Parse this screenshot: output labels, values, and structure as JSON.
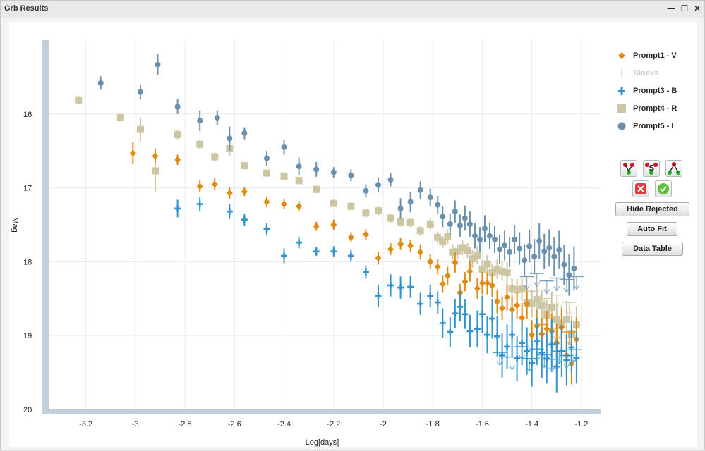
{
  "window": {
    "title": "Grb Results"
  },
  "buttons": {
    "hide_rejected": "Hide Rejected",
    "auto_fit": "Auto Fit",
    "data_table": "Data Table"
  },
  "tool_icons": [
    "fit-v-icon",
    "fit-s-icon",
    "fit-a-icon",
    "reject-x-icon",
    "accept-check-icon"
  ],
  "colors": {
    "V": "#e08a12",
    "Blocks": "#d8d3b5",
    "B": "#2f93cf",
    "R": "#cdc6a2",
    "I": "#6a90ad",
    "axis": "#c0cfdc"
  },
  "chart_data": {
    "type": "scatter",
    "xlabel": "Log[days]",
    "ylabel": "Mag",
    "xlim": [
      -3.35,
      -1.12
    ],
    "ylim": [
      20,
      15.0
    ],
    "y_inverted": true,
    "grid": true,
    "legend_position": "right",
    "xticks": [
      -3.2,
      -3,
      -2.8,
      -2.6,
      -2.4,
      -2.2,
      -2,
      -1.8,
      -1.6,
      -1.4,
      -1.2
    ],
    "xtick_labels": [
      "-3.2",
      "-3",
      "-2.8",
      "-2.6",
      "-2.4",
      "-2.2",
      "-2",
      "-1.8",
      "-1.6",
      "-1.4",
      "-1.2"
    ],
    "yticks": [
      16,
      17,
      18,
      19,
      20
    ],
    "ytick_labels": [
      "16",
      "17",
      "18",
      "19",
      "20"
    ],
    "series": [
      {
        "name": "Prompt1 - V",
        "marker": "diamond",
        "color": "#e08a12",
        "visible": true,
        "points": [
          [
            -3.01,
            16.53,
            0.15
          ],
          [
            -2.92,
            16.57,
            0.1
          ],
          [
            -2.83,
            16.62,
            0.07
          ],
          [
            -2.74,
            16.98,
            0.08
          ],
          [
            -2.68,
            16.95,
            0.08
          ],
          [
            -2.62,
            17.07,
            0.08
          ],
          [
            -2.56,
            17.05,
            0.06
          ],
          [
            -2.47,
            17.19,
            0.07
          ],
          [
            -2.4,
            17.22,
            0.07
          ],
          [
            -2.34,
            17.25,
            0.07
          ],
          [
            -2.27,
            17.52,
            0.06
          ],
          [
            -2.2,
            17.5,
            0.07
          ],
          [
            -2.13,
            17.67,
            0.07
          ],
          [
            -2.07,
            17.63,
            0.07
          ],
          [
            -2.02,
            17.95,
            0.09
          ],
          [
            -1.97,
            17.83,
            0.08
          ],
          [
            -1.93,
            17.76,
            0.08
          ],
          [
            -1.89,
            17.78,
            0.08
          ],
          [
            -1.85,
            17.87,
            0.1
          ],
          [
            -1.81,
            18.0,
            0.1
          ],
          [
            -1.78,
            18.07,
            0.1
          ],
          [
            -1.76,
            18.3,
            0.12
          ],
          [
            -1.74,
            18.19,
            0.12
          ],
          [
            -1.71,
            18.01,
            0.14
          ],
          [
            -1.69,
            18.42,
            0.12
          ],
          [
            -1.67,
            18.27,
            0.13
          ],
          [
            -1.65,
            18.13,
            0.14
          ],
          [
            -1.62,
            18.36,
            0.14
          ],
          [
            -1.6,
            18.29,
            0.15
          ],
          [
            -1.58,
            18.29,
            0.15
          ],
          [
            -1.56,
            18.32,
            0.16
          ],
          [
            -1.54,
            18.54,
            0.16
          ],
          [
            -1.52,
            18.63,
            0.16
          ],
          [
            -1.5,
            18.48,
            0.18
          ],
          [
            -1.48,
            18.65,
            0.18
          ],
          [
            -1.46,
            18.59,
            0.18
          ],
          [
            -1.44,
            18.76,
            0.2
          ],
          [
            -1.42,
            18.57,
            0.2
          ],
          [
            -1.4,
            18.99,
            0.2
          ],
          [
            -1.38,
            18.87,
            0.22
          ],
          [
            -1.36,
            18.98,
            0.22
          ],
          [
            -1.34,
            18.91,
            0.24
          ],
          [
            -1.32,
            18.94,
            0.24
          ],
          [
            -1.3,
            19.1,
            0.26
          ],
          [
            -1.28,
            18.89,
            0.26
          ],
          [
            -1.26,
            19.27,
            0.28
          ],
          [
            -1.24,
            19.38,
            0.28
          ],
          [
            -1.22,
            19.05,
            0.3
          ]
        ]
      },
      {
        "name": "Blocks",
        "marker": "bar",
        "color": "#d8d3b5",
        "visible": false,
        "points": []
      },
      {
        "name": "Prompt3 - B",
        "marker": "plus",
        "color": "#2f93cf",
        "visible": true,
        "points": [
          [
            -2.83,
            17.28,
            0.12
          ],
          [
            -2.74,
            17.22,
            0.1
          ],
          [
            -2.62,
            17.32,
            0.1
          ],
          [
            -2.56,
            17.43,
            0.08
          ],
          [
            -2.47,
            17.56,
            0.08
          ],
          [
            -2.4,
            17.92,
            0.1
          ],
          [
            -2.34,
            17.74,
            0.08
          ],
          [
            -2.27,
            17.86,
            0.06
          ],
          [
            -2.2,
            17.86,
            0.07
          ],
          [
            -2.13,
            17.92,
            0.08
          ],
          [
            -2.07,
            18.14,
            0.09
          ],
          [
            -2.02,
            18.46,
            0.15
          ],
          [
            -1.97,
            18.32,
            0.15
          ],
          [
            -1.93,
            18.35,
            0.15
          ],
          [
            -1.89,
            18.34,
            0.15
          ],
          [
            -1.85,
            18.57,
            0.15
          ],
          [
            -1.81,
            18.46,
            0.15
          ],
          [
            -1.78,
            18.55,
            0.15
          ],
          [
            -1.76,
            18.83,
            0.2
          ],
          [
            -1.73,
            18.95,
            0.2
          ],
          [
            -1.71,
            18.7,
            0.2
          ],
          [
            -1.69,
            18.61,
            0.2
          ],
          [
            -1.67,
            18.71,
            0.2
          ],
          [
            -1.65,
            18.94,
            0.22
          ],
          [
            -1.62,
            18.91,
            0.25
          ],
          [
            -1.6,
            18.71,
            0.25
          ],
          [
            -1.58,
            18.99,
            0.25
          ],
          [
            -1.56,
            18.77,
            0.27
          ],
          [
            -1.54,
            19.01,
            0.27
          ],
          [
            -1.52,
            19.27,
            0.3
          ],
          [
            -1.5,
            19.15,
            0.3
          ],
          [
            -1.48,
            18.99,
            0.3
          ],
          [
            -1.46,
            19.31,
            0.3
          ],
          [
            -1.44,
            19.1,
            0.3
          ],
          [
            -1.42,
            19.21,
            0.32
          ],
          [
            -1.4,
            19.37,
            0.32
          ],
          [
            -1.38,
            19.08,
            0.32
          ],
          [
            -1.36,
            19.23,
            0.34
          ],
          [
            -1.34,
            19.31,
            0.34
          ],
          [
            -1.32,
            19.12,
            0.34
          ],
          [
            -1.3,
            19.42,
            0.35
          ],
          [
            -1.28,
            19.21,
            0.35
          ],
          [
            -1.26,
            19.33,
            0.35
          ],
          [
            -1.24,
            19.16,
            0.35
          ],
          [
            -1.22,
            19.3,
            0.35
          ]
        ]
      },
      {
        "name": "Prompt4 - R",
        "marker": "square",
        "color": "#cdc6a2",
        "visible": true,
        "points": [
          [
            -3.23,
            15.81,
            0.06
          ],
          [
            -3.06,
            16.05,
            0.05
          ],
          [
            -2.98,
            16.21,
            0.16
          ],
          [
            -2.92,
            16.77,
            0.28
          ],
          [
            -2.83,
            16.28,
            0.06
          ],
          [
            -2.74,
            16.41,
            0.06
          ],
          [
            -2.68,
            16.58,
            0.06
          ],
          [
            -2.62,
            16.47,
            0.1
          ],
          [
            -2.56,
            16.7,
            0.05
          ],
          [
            -2.47,
            16.8,
            0.05
          ],
          [
            -2.4,
            16.84,
            0.05
          ],
          [
            -2.34,
            16.9,
            0.05
          ],
          [
            -2.27,
            17.02,
            0.05
          ],
          [
            -2.2,
            17.21,
            0.05
          ],
          [
            -2.13,
            17.25,
            0.05
          ],
          [
            -2.07,
            17.34,
            0.06
          ],
          [
            -2.02,
            17.31,
            0.06
          ],
          [
            -1.97,
            17.41,
            0.06
          ],
          [
            -1.93,
            17.46,
            0.06
          ],
          [
            -1.89,
            17.47,
            0.06
          ],
          [
            -1.85,
            17.58,
            0.07
          ],
          [
            -1.81,
            17.49,
            0.08
          ],
          [
            -1.78,
            17.67,
            0.08
          ],
          [
            -1.76,
            17.73,
            0.08
          ],
          [
            -1.74,
            17.66,
            0.1
          ],
          [
            -1.72,
            17.87,
            0.1
          ],
          [
            -1.7,
            17.86,
            0.1
          ],
          [
            -1.68,
            17.81,
            0.1
          ],
          [
            -1.66,
            17.85,
            0.1
          ],
          [
            -1.64,
            17.96,
            0.12
          ],
          [
            -1.62,
            17.91,
            0.12
          ],
          [
            -1.6,
            18.1,
            0.12
          ],
          [
            -1.58,
            18.03,
            0.12
          ],
          [
            -1.56,
            18.15,
            0.13
          ],
          [
            -1.54,
            18.1,
            0.13
          ],
          [
            -1.52,
            18.13,
            0.13
          ],
          [
            -1.5,
            18.15,
            0.14
          ],
          [
            -1.48,
            18.37,
            0.15
          ],
          [
            -1.46,
            18.38,
            0.15
          ],
          [
            -1.44,
            18.37,
            0.16
          ],
          [
            -1.42,
            18.56,
            0.17
          ],
          [
            -1.4,
            18.57,
            0.18
          ],
          [
            -1.38,
            18.51,
            0.18
          ],
          [
            -1.36,
            18.59,
            0.2
          ],
          [
            -1.34,
            18.72,
            0.2
          ],
          [
            -1.32,
            18.62,
            0.22
          ],
          [
            -1.3,
            18.78,
            0.22
          ],
          [
            -1.28,
            18.83,
            0.24
          ],
          [
            -1.26,
            18.78,
            0.25
          ],
          [
            -1.24,
            18.98,
            0.25
          ],
          [
            -1.22,
            18.85,
            0.25
          ]
        ]
      },
      {
        "name": "Prompt5 - I",
        "marker": "circle",
        "color": "#6a90ad",
        "visible": true,
        "points": [
          [
            -3.14,
            15.58,
            0.09
          ],
          [
            -2.98,
            15.7,
            0.1
          ],
          [
            -2.91,
            15.33,
            0.14
          ],
          [
            -2.83,
            15.9,
            0.1
          ],
          [
            -2.74,
            16.09,
            0.14
          ],
          [
            -2.67,
            16.05,
            0.1
          ],
          [
            -2.62,
            16.33,
            0.16
          ],
          [
            -2.56,
            16.26,
            0.08
          ],
          [
            -2.47,
            16.6,
            0.1
          ],
          [
            -2.4,
            16.45,
            0.1
          ],
          [
            -2.34,
            16.71,
            0.12
          ],
          [
            -2.27,
            16.75,
            0.1
          ],
          [
            -2.2,
            16.79,
            0.07
          ],
          [
            -2.13,
            16.83,
            0.08
          ],
          [
            -2.07,
            17.04,
            0.09
          ],
          [
            -2.02,
            16.96,
            0.1
          ],
          [
            -1.97,
            16.89,
            0.09
          ],
          [
            -1.93,
            17.28,
            0.14
          ],
          [
            -1.89,
            17.19,
            0.14
          ],
          [
            -1.85,
            17.03,
            0.12
          ],
          [
            -1.81,
            17.13,
            0.12
          ],
          [
            -1.78,
            17.23,
            0.12
          ],
          [
            -1.76,
            17.39,
            0.14
          ],
          [
            -1.73,
            17.49,
            0.14
          ],
          [
            -1.71,
            17.32,
            0.15
          ],
          [
            -1.69,
            17.51,
            0.15
          ],
          [
            -1.67,
            17.41,
            0.17
          ],
          [
            -1.65,
            17.49,
            0.17
          ],
          [
            -1.63,
            17.65,
            0.17
          ],
          [
            -1.61,
            17.7,
            0.17
          ],
          [
            -1.59,
            17.55,
            0.18
          ],
          [
            -1.57,
            17.65,
            0.18
          ],
          [
            -1.55,
            17.7,
            0.18
          ],
          [
            -1.53,
            17.83,
            0.2
          ],
          [
            -1.51,
            17.78,
            0.2
          ],
          [
            -1.49,
            17.87,
            0.2
          ],
          [
            -1.47,
            17.7,
            0.2
          ],
          [
            -1.45,
            17.82,
            0.22
          ],
          [
            -1.43,
            17.98,
            0.22
          ],
          [
            -1.41,
            17.79,
            0.22
          ],
          [
            -1.39,
            17.93,
            0.24
          ],
          [
            -1.37,
            17.72,
            0.24
          ],
          [
            -1.35,
            17.86,
            0.24
          ],
          [
            -1.33,
            17.81,
            0.25
          ],
          [
            -1.31,
            17.93,
            0.26
          ],
          [
            -1.29,
            17.84,
            0.26
          ],
          [
            -1.27,
            18.04,
            0.27
          ],
          [
            -1.25,
            18.18,
            0.28
          ],
          [
            -1.23,
            18.09,
            0.3
          ]
        ]
      }
    ],
    "upper_limits": {
      "B": [
        [
          -1.53,
          19.23
        ],
        [
          -1.48,
          19.29
        ],
        [
          -1.44,
          19.15
        ],
        [
          -1.41,
          19.31
        ],
        [
          -1.38,
          19.18
        ],
        [
          -1.35,
          19.26
        ],
        [
          -1.32,
          19.32
        ],
        [
          -1.29,
          19.21
        ],
        [
          -1.26,
          19.27
        ],
        [
          -1.23,
          19.19
        ]
      ],
      "I": [
        [
          -1.42,
          18.2
        ],
        [
          -1.38,
          18.16
        ],
        [
          -1.34,
          18.26
        ],
        [
          -1.3,
          18.22
        ],
        [
          -1.26,
          18.24
        ],
        [
          -1.22,
          18.2
        ]
      ],
      "R": [
        [
          -1.4,
          18.4
        ],
        [
          -1.35,
          18.5
        ],
        [
          -1.3,
          18.45
        ],
        [
          -1.25,
          18.55
        ]
      ],
      "V": [
        [
          -1.36,
          18.85
        ],
        [
          -1.3,
          18.9
        ],
        [
          -1.25,
          18.95
        ]
      ]
    }
  }
}
